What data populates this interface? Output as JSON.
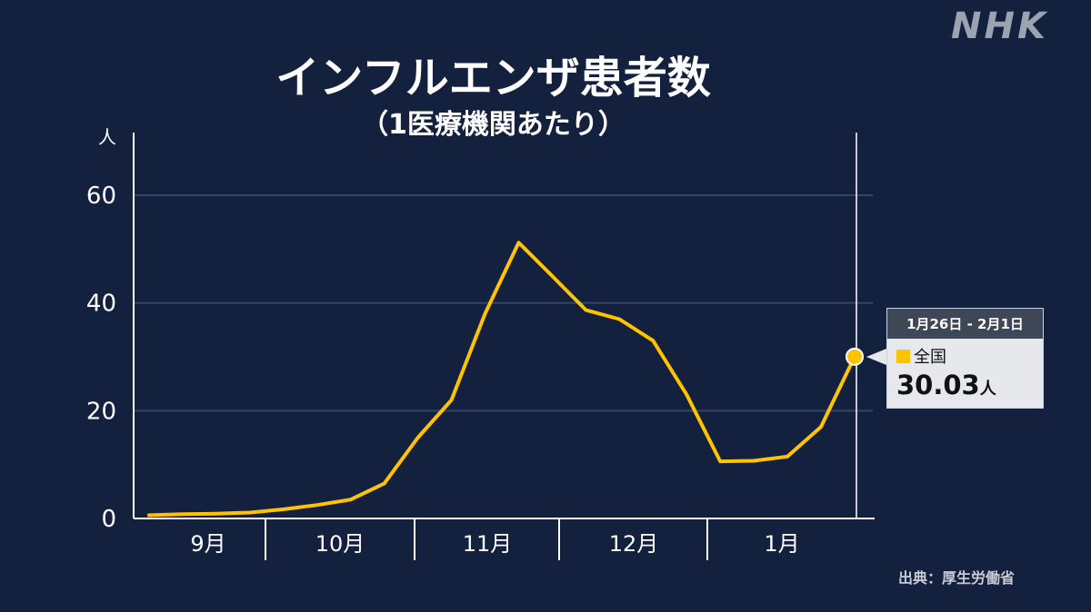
{
  "logo": "NHK",
  "source": "出典：厚生労働省",
  "tooltip": {
    "period": "1月26日 - 2月1日",
    "series": "全国",
    "value": "30.03",
    "unit": "人"
  },
  "colors": {
    "background": "#13213f",
    "line": "#ffc300",
    "grid": "#34456a",
    "axis": "#ffffff"
  },
  "chart_data": {
    "type": "line",
    "title": "インフルエンザ患者数",
    "subtitle": "（1医療機関あたり）",
    "ylabel": "人",
    "ylim": [
      0,
      60
    ],
    "yticks": [
      0,
      20,
      40,
      60
    ],
    "month_labels": [
      "9月",
      "10月",
      "11月",
      "12月",
      "1月"
    ],
    "series": [
      {
        "name": "全国",
        "values": [
          0.6,
          0.8,
          0.9,
          1.1,
          1.7,
          2.5,
          3.5,
          6.5,
          15.0,
          22.0,
          38.0,
          51.2,
          45.0,
          38.7,
          37.0,
          33.0,
          23.0,
          10.6,
          10.7,
          11.5,
          17.0,
          30.03
        ]
      }
    ]
  }
}
